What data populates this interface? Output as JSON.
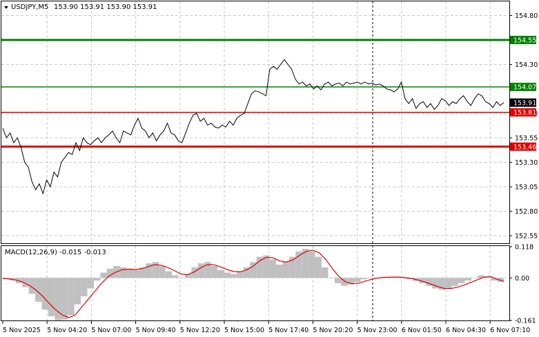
{
  "header": {
    "symbol": "USDJPY,M5",
    "ohlc": "153.90 153.91 153.90 153.91"
  },
  "macd_header": "MACD(12,26,9) -0.015 -0.013",
  "colors": {
    "price_line": "#000000",
    "green_level": "#008000",
    "red_level": "#e00000",
    "macd_hist": "#c0c0c0",
    "macd_signal": "#e00000",
    "grid": "#c8c8c8",
    "current_price_box": "#000000"
  },
  "chart_data": [
    {
      "type": "line",
      "title": "USDJPY,M5",
      "ylim": [
        152.48,
        154.93
      ],
      "y_ticks": [
        "154.80",
        "154.30",
        "153.80",
        "153.55",
        "153.30",
        "153.05",
        "152.80",
        "152.55"
      ],
      "x_ticks": [
        "5 Nov 2025",
        "5 Nov 04:20",
        "5 Nov 07:00",
        "5 Nov 09:40",
        "5 Nov 12:20",
        "5 Nov 15:00",
        "5 Nov 17:40",
        "5 Nov 20:20",
        "5 Nov 23:00",
        "6 Nov 01:50",
        "6 Nov 04:30",
        "6 Nov 07:10"
      ],
      "levels": [
        {
          "label": "154.55",
          "value": 154.55,
          "color": "green",
          "width": "thick"
        },
        {
          "label": "154.07",
          "value": 154.07,
          "color": "green",
          "width": "thin"
        },
        {
          "label": "153.81",
          "value": 153.81,
          "color": "red",
          "width": "thin"
        },
        {
          "label": "153.46",
          "value": 153.46,
          "color": "red",
          "width": "thick"
        }
      ],
      "current_price": "153.91",
      "series": [
        {
          "values": [
            153.65,
            153.55,
            153.6,
            153.5,
            153.55,
            153.45,
            153.3,
            153.25,
            153.1,
            153.02,
            153.08,
            152.98,
            153.12,
            153.05,
            153.2,
            153.15,
            153.3,
            153.35,
            153.4,
            153.38,
            153.5,
            153.42,
            153.55,
            153.5,
            153.48,
            153.52,
            153.55,
            153.5,
            153.55,
            153.58,
            153.62,
            153.55,
            153.5,
            153.62,
            153.6,
            153.58,
            153.68,
            153.75,
            153.65,
            153.62,
            153.55,
            153.6,
            153.52,
            153.58,
            153.62,
            153.7,
            153.6,
            153.58,
            153.52,
            153.5,
            153.6,
            153.7,
            153.78,
            153.8,
            153.72,
            153.75,
            153.68,
            153.7,
            153.66,
            153.65,
            153.68,
            153.66,
            153.72,
            153.68,
            153.75,
            153.78,
            153.8,
            153.9,
            154.0,
            154.03,
            154.02,
            154.0,
            153.98,
            154.25,
            154.28,
            154.25,
            154.3,
            154.35,
            154.3,
            154.25,
            154.15,
            154.1,
            154.12,
            154.08,
            154.1,
            154.05,
            154.08,
            154.04,
            154.1,
            154.12,
            154.08,
            154.1,
            154.11,
            154.08,
            154.12,
            154.1,
            154.11,
            154.12,
            154.1,
            154.12,
            154.1,
            154.11,
            154.09,
            154.1,
            154.08,
            154.05,
            154.04,
            154.02,
            154.05,
            154.12,
            153.95,
            153.9,
            153.95,
            153.85,
            153.9,
            153.92,
            153.86,
            153.9,
            153.84,
            153.88,
            153.95,
            153.93,
            153.88,
            153.92,
            153.9,
            153.95,
            153.98,
            153.92,
            153.88,
            153.95,
            154.0,
            153.98,
            153.92,
            153.9,
            153.86,
            153.92,
            153.88,
            153.91
          ]
        }
      ]
    },
    {
      "type": "bar",
      "title": "MACD(12,26,9) -0.015 -0.013",
      "ylim": [
        -0.161,
        0.118
      ],
      "y_ticks": [
        "0.118",
        "0.00",
        "-0.161"
      ],
      "series": [
        {
          "name": "MACD",
          "values": [
            -0.005,
            -0.01,
            -0.02,
            -0.035,
            -0.06,
            -0.09,
            -0.12,
            -0.145,
            -0.16,
            -0.158,
            -0.14,
            -0.1,
            -0.07,
            -0.04,
            -0.01,
            0.02,
            0.035,
            0.045,
            0.04,
            0.035,
            0.03,
            0.04,
            0.055,
            0.06,
            0.045,
            0.025,
            0.01,
            0.0,
            0.015,
            0.04,
            0.055,
            0.06,
            0.045,
            0.03,
            0.02,
            0.015,
            0.025,
            0.04,
            0.06,
            0.08,
            0.085,
            0.07,
            0.05,
            0.06,
            0.08,
            0.1,
            0.11,
            0.1,
            0.08,
            0.04,
            0.0,
            -0.02,
            -0.03,
            -0.025,
            -0.015,
            -0.005,
            0.0,
            0.002,
            0.004,
            0.003,
            0.002,
            0.0,
            -0.005,
            -0.012,
            -0.02,
            -0.03,
            -0.04,
            -0.045,
            -0.04,
            -0.03,
            -0.02,
            -0.01,
            0.0,
            0.01,
            0.005,
            -0.01,
            -0.015
          ]
        },
        {
          "name": "Signal",
          "values": [
            -0.002,
            -0.004,
            -0.008,
            -0.015,
            -0.028,
            -0.045,
            -0.068,
            -0.095,
            -0.12,
            -0.14,
            -0.15,
            -0.14,
            -0.11,
            -0.08,
            -0.05,
            -0.02,
            0.005,
            0.02,
            0.03,
            0.033,
            0.032,
            0.034,
            0.042,
            0.05,
            0.048,
            0.04,
            0.028,
            0.015,
            0.012,
            0.022,
            0.038,
            0.05,
            0.05,
            0.042,
            0.032,
            0.024,
            0.023,
            0.03,
            0.045,
            0.065,
            0.078,
            0.076,
            0.064,
            0.06,
            0.068,
            0.085,
            0.1,
            0.105,
            0.095,
            0.07,
            0.035,
            0.005,
            -0.015,
            -0.022,
            -0.02,
            -0.012,
            -0.005,
            0.0,
            0.002,
            0.003,
            0.003,
            0.001,
            -0.002,
            -0.008,
            -0.015,
            -0.024,
            -0.033,
            -0.04,
            -0.04,
            -0.035,
            -0.027,
            -0.017,
            -0.007,
            0.003,
            0.005,
            -0.005,
            -0.013
          ]
        }
      ]
    }
  ]
}
